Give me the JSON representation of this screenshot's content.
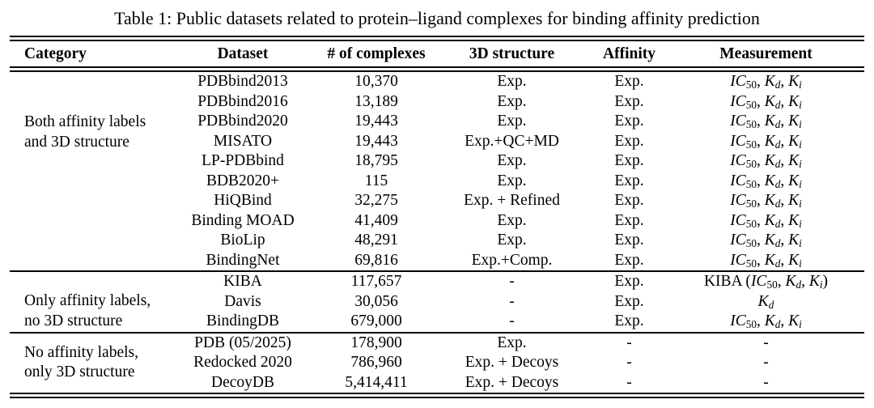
{
  "caption": "Table 1: Public datasets related to protein–ligand complexes for binding affinity prediction",
  "table": {
    "columns": [
      "Category",
      "Dataset",
      "# of complexes",
      "3D structure",
      "Affinity",
      "Measurement"
    ],
    "sections": [
      {
        "category": [
          "Both affinity labels",
          "and 3D structure"
        ],
        "rows": [
          {
            "dataset": "PDBbind2013",
            "complexes": "10,370",
            "structure": "Exp.",
            "affinity": "Exp.",
            "measurement": "*IC*_50_, *K*_*d*_, *K*_*i*_"
          },
          {
            "dataset": "PDBbind2016",
            "complexes": "13,189",
            "structure": "Exp.",
            "affinity": "Exp.",
            "measurement": "*IC*_50_, *K*_*d*_, *K*_*i*_"
          },
          {
            "dataset": "PDBbind2020",
            "complexes": "19,443",
            "structure": "Exp.",
            "affinity": "Exp.",
            "measurement": "*IC*_50_, *K*_*d*_, *K*_*i*_"
          },
          {
            "dataset": "MISATO",
            "complexes": "19,443",
            "structure": "Exp.+QC+MD",
            "affinity": "Exp.",
            "measurement": "*IC*_50_, *K*_*d*_, *K*_*i*_"
          },
          {
            "dataset": "LP-PDBbind",
            "complexes": "18,795",
            "structure": "Exp.",
            "affinity": "Exp.",
            "measurement": "*IC*_50_, *K*_*d*_, *K*_*i*_"
          },
          {
            "dataset": "BDB2020+",
            "complexes": "115",
            "structure": "Exp.",
            "affinity": "Exp.",
            "measurement": "*IC*_50_, *K*_*d*_, *K*_*i*_"
          },
          {
            "dataset": "HiQBind",
            "complexes": "32,275",
            "structure": "Exp. + Refined",
            "affinity": "Exp.",
            "measurement": "*IC*_50_, *K*_*d*_, *K*_*i*_"
          },
          {
            "dataset": "Binding MOAD",
            "complexes": "41,409",
            "structure": "Exp.",
            "affinity": "Exp.",
            "measurement": "*IC*_50_, *K*_*d*_, *K*_*i*_"
          },
          {
            "dataset": "BioLip",
            "complexes": "48,291",
            "structure": "Exp.",
            "affinity": "Exp.",
            "measurement": "*IC*_50_, *K*_*d*_, *K*_*i*_"
          },
          {
            "dataset": "BindingNet",
            "complexes": "69,816",
            "structure": "Exp.+Comp.",
            "affinity": "Exp.",
            "measurement": "*IC*_50_, *K*_*d*_, *K*_*i*_"
          }
        ]
      },
      {
        "category": [
          "Only affinity labels,",
          "no 3D structure"
        ],
        "rows": [
          {
            "dataset": "KIBA",
            "complexes": "117,657",
            "structure": "-",
            "affinity": "Exp.",
            "measurement": "KIBA (*IC*_50_, *K*_*d*_, *K*_*i*_)"
          },
          {
            "dataset": "Davis",
            "complexes": "30,056",
            "structure": "-",
            "affinity": "Exp.",
            "measurement": "*K*_*d*_"
          },
          {
            "dataset": "BindingDB",
            "complexes": "679,000",
            "structure": "-",
            "affinity": "Exp.",
            "measurement": "*IC*_50_, *K*_*d*_, *K*_*i*_"
          }
        ]
      },
      {
        "category": [
          "No affinity labels,",
          "only 3D structure"
        ],
        "rows": [
          {
            "dataset": "PDB (05/2025)",
            "complexes": "178,900",
            "structure": "Exp.",
            "affinity": "-",
            "measurement": "-"
          },
          {
            "dataset": "Redocked 2020",
            "complexes": "786,960",
            "structure": "Exp. + Decoys",
            "affinity": "-",
            "measurement": "-"
          },
          {
            "dataset": "DecoyDB",
            "complexes": "5,414,411",
            "structure": "Exp. + Decoys",
            "affinity": "-",
            "measurement": "-"
          }
        ]
      }
    ]
  }
}
